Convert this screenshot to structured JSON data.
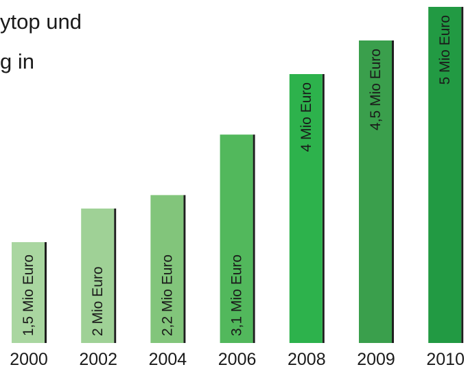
{
  "header_fragments": [
    "ytop und",
    "g in"
  ],
  "chart_data": {
    "type": "bar",
    "title": "",
    "xlabel": "",
    "ylabel": "",
    "ylim": [
      0,
      5
    ],
    "grid": false,
    "categories": [
      "2000",
      "2002",
      "2004",
      "2006",
      "2008",
      "2009",
      "2010"
    ],
    "values": [
      1.5,
      2,
      2.2,
      3.1,
      4,
      4.5,
      5
    ],
    "data_labels": [
      "1,5 Mio Euro",
      "2 Mio Euro",
      "2,2 Mio Euro",
      "3,1 Mio Euro",
      "4 Mio Euro",
      "4,5 Mio Euro",
      "5 Mio Euro"
    ],
    "colors": [
      "#a9d6a0",
      "#9fd196",
      "#82c57b",
      "#52b85c",
      "#2db24c",
      "#3a9f4c",
      "#229a43"
    ],
    "shadow_color": "#1e1e1e"
  }
}
